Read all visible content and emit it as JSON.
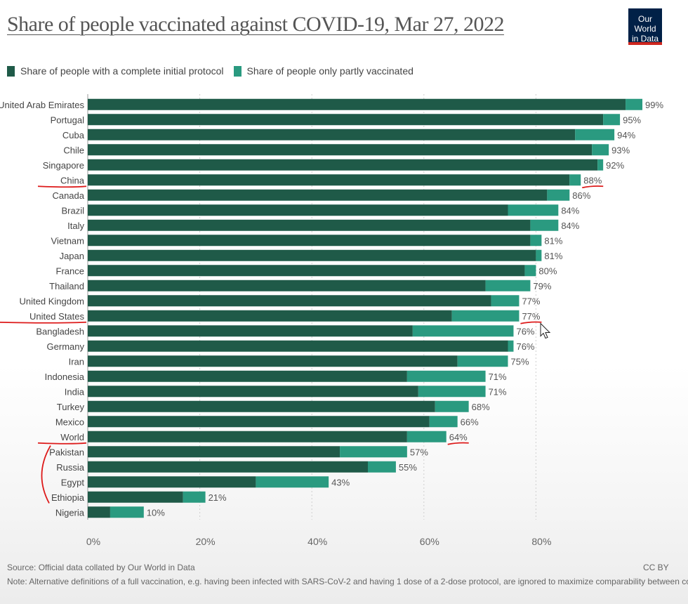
{
  "title": "Share of people vaccinated against COVID-19, Mar 27, 2022",
  "logo": {
    "line1": "Our World",
    "line2": "in Data"
  },
  "colors": {
    "complete": "#1f5a48",
    "partial": "#2a9a80",
    "annotation": "#dd1a1a",
    "grid": "#cfcfcf"
  },
  "chart_data": {
    "type": "bar",
    "orientation": "horizontal",
    "stacked": true,
    "title": "Share of people vaccinated against COVID-19, Mar 27, 2022",
    "xlabel": "",
    "ylabel": "",
    "xlim": [
      0,
      100
    ],
    "x_ticks": [
      0,
      20,
      40,
      60,
      80
    ],
    "x_tick_labels": [
      "0%",
      "20%",
      "40%",
      "60%",
      "80%"
    ],
    "categories": [
      "United Arab Emirates",
      "Portugal",
      "Cuba",
      "Chile",
      "Singapore",
      "China",
      "Canada",
      "Brazil",
      "Italy",
      "Vietnam",
      "Japan",
      "France",
      "Thailand",
      "United Kingdom",
      "United States",
      "Bangladesh",
      "Germany",
      "Iran",
      "Indonesia",
      "India",
      "Turkey",
      "Mexico",
      "World",
      "Pakistan",
      "Russia",
      "Egypt",
      "Ethiopia",
      "Nigeria"
    ],
    "series": [
      {
        "name": "Share of people with a complete initial protocol",
        "values": [
          96,
          92,
          87,
          90,
          91,
          86,
          82,
          75,
          79,
          79,
          80,
          78,
          71,
          72,
          65,
          58,
          75,
          66,
          57,
          59,
          62,
          61,
          57,
          45,
          50,
          30,
          17,
          4
        ]
      },
      {
        "name": "Share of people only partly vaccinated",
        "values": [
          3,
          3,
          7,
          3,
          1,
          2,
          4,
          9,
          5,
          2,
          1,
          2,
          8,
          5,
          12,
          18,
          1,
          9,
          14,
          12,
          6,
          5,
          7,
          12,
          5,
          13,
          4,
          6
        ]
      }
    ],
    "data_labels": [
      "99%",
      "95%",
      "94%",
      "93%",
      "92%",
      "88%",
      "86%",
      "84%",
      "84%",
      "81%",
      "81%",
      "80%",
      "79%",
      "77%",
      "77%",
      "76%",
      "76%",
      "75%",
      "71%",
      "71%",
      "68%",
      "66%",
      "64%",
      "57%",
      "55%",
      "43%",
      "21%",
      "10%"
    ],
    "highlighted": [
      "China",
      "United States",
      "World",
      "Pakistan",
      "Russia",
      "Egypt",
      "Ethiopia"
    ],
    "legend_position": "top-left"
  },
  "footer": {
    "source": "Source: Official data collated by Our World in Data",
    "note": "Note: Alternative definitions of a full vaccination, e.g. having been infected with SARS-CoV-2 and having 1 dose of a 2-dose protocol, are ignored to maximize comparability between countries.",
    "license": "CC BY"
  }
}
